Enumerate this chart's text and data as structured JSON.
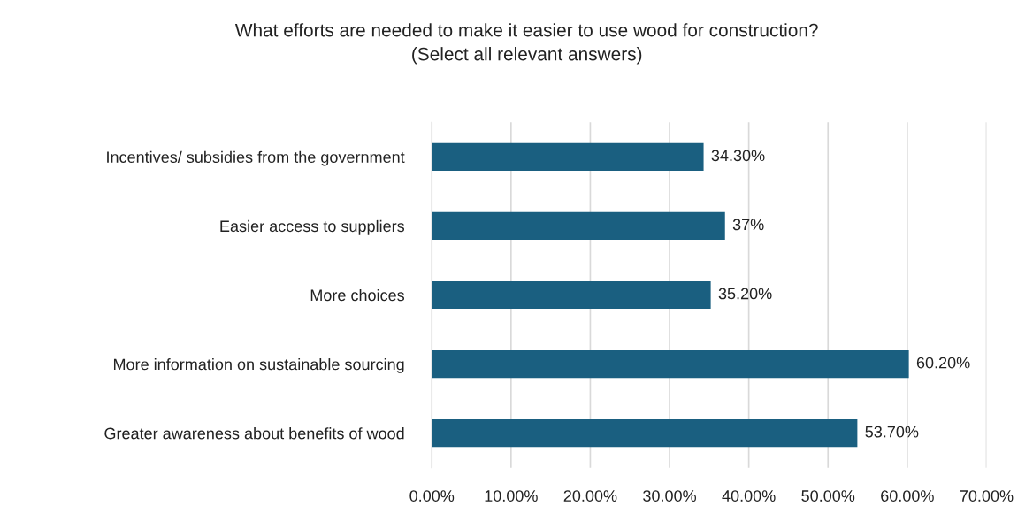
{
  "chart_data": {
    "type": "bar",
    "orientation": "horizontal",
    "title": "What efforts are needed to make it easier to use wood for construction?\n(Select all relevant answers)",
    "categories": [
      "Incentives/ subsidies from the government",
      "Easier access to suppliers",
      "More choices",
      "More information on sustainable sourcing",
      "Greater awareness about benefits of wood"
    ],
    "values": [
      34.3,
      37,
      35.2,
      60.2,
      53.7
    ],
    "value_labels": [
      "34.30%",
      "37%",
      "35.20%",
      "60.20%",
      "53.70%"
    ],
    "color": "#1a5f80",
    "xlim": [
      0,
      70
    ],
    "xticks": [
      {
        "value": 0,
        "label": "0.00%"
      },
      {
        "value": 10,
        "label": "10.00%"
      },
      {
        "value": 20,
        "label": "20.00%"
      },
      {
        "value": 30,
        "label": "30.00%"
      },
      {
        "value": 40,
        "label": "40.00%"
      },
      {
        "value": 50,
        "label": "50.00%"
      },
      {
        "value": 60,
        "label": "60.00%"
      },
      {
        "value": 70,
        "label": "70.00%"
      }
    ],
    "grid": "x",
    "legend": false
  }
}
